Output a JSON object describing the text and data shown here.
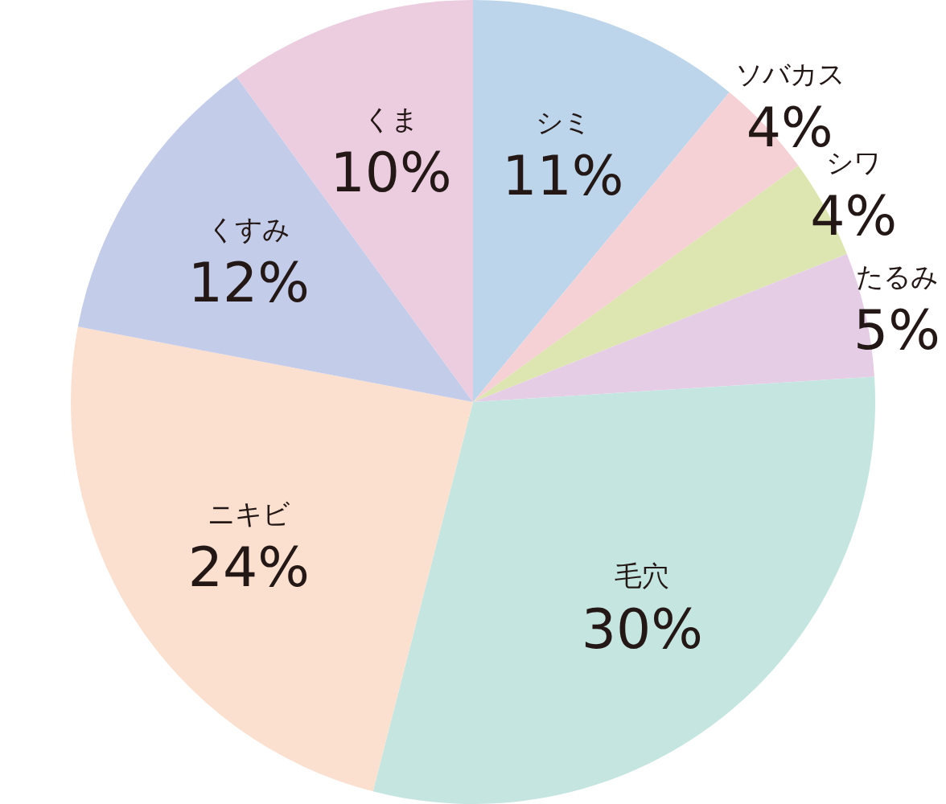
{
  "chart_data": {
    "type": "pie",
    "categories": [
      "シミ",
      "ソバカス",
      "シワ",
      "たるみ",
      "毛穴",
      "ニキビ",
      "くすみ",
      "くま"
    ],
    "values": [
      11,
      4,
      4,
      5,
      30,
      24,
      12,
      10
    ],
    "colors": [
      "#bdd5ea",
      "#f5d0d4",
      "#dde5b0",
      "#e5cde5",
      "#c5e5e0",
      "#fbe0d0",
      "#c3cce8",
      "#ecccdf"
    ],
    "value_labels": [
      "11%",
      "4%",
      "4%",
      "5%",
      "30%",
      "24%",
      "12%",
      "10%"
    ]
  }
}
